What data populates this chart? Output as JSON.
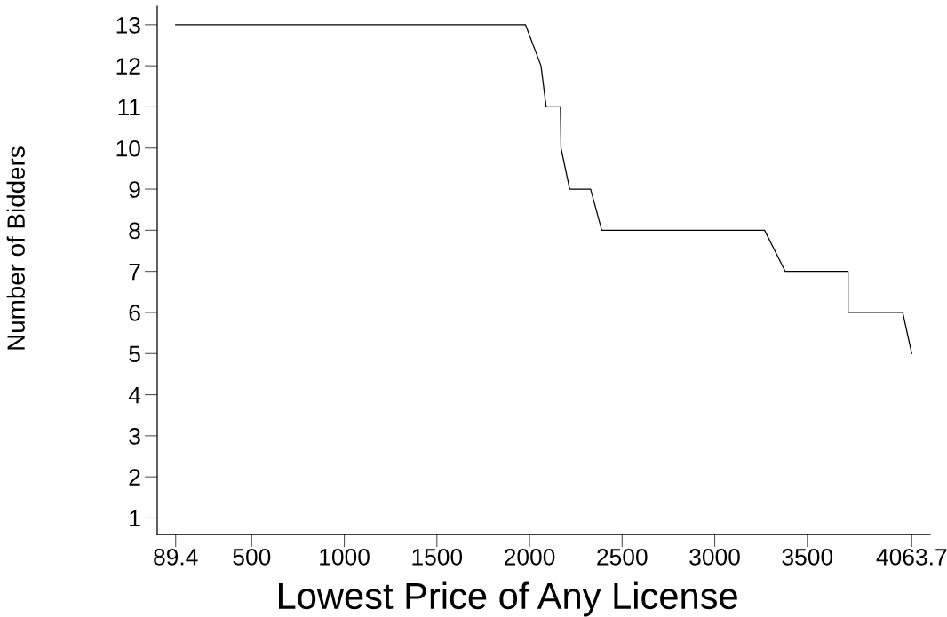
{
  "chart_data": {
    "type": "line",
    "xlabel": "Lowest Price of Any License",
    "ylabel": "Number of Bidders",
    "x": [
      89.4,
      1978,
      2062,
      2090,
      2167,
      2170,
      2217,
      2330,
      2390,
      3269,
      3381,
      3720,
      3720,
      4015,
      4063.7
    ],
    "values": [
      13,
      13,
      12,
      11,
      11,
      10,
      9,
      9,
      8,
      8,
      7,
      7,
      6,
      6,
      5
    ],
    "color": "#000000",
    "marker": "none",
    "line_style": "solid",
    "grid": false,
    "legend": false,
    "xlim": [
      -10,
      4163
    ],
    "ylim": [
      0.6,
      13.45
    ],
    "xticks": [
      89.4,
      500,
      1000,
      1500,
      2000,
      2500,
      3000,
      3500,
      4063.7
    ],
    "yticks": [
      1,
      2,
      3,
      4,
      5,
      6,
      7,
      8,
      9,
      10,
      11,
      12,
      13
    ]
  }
}
